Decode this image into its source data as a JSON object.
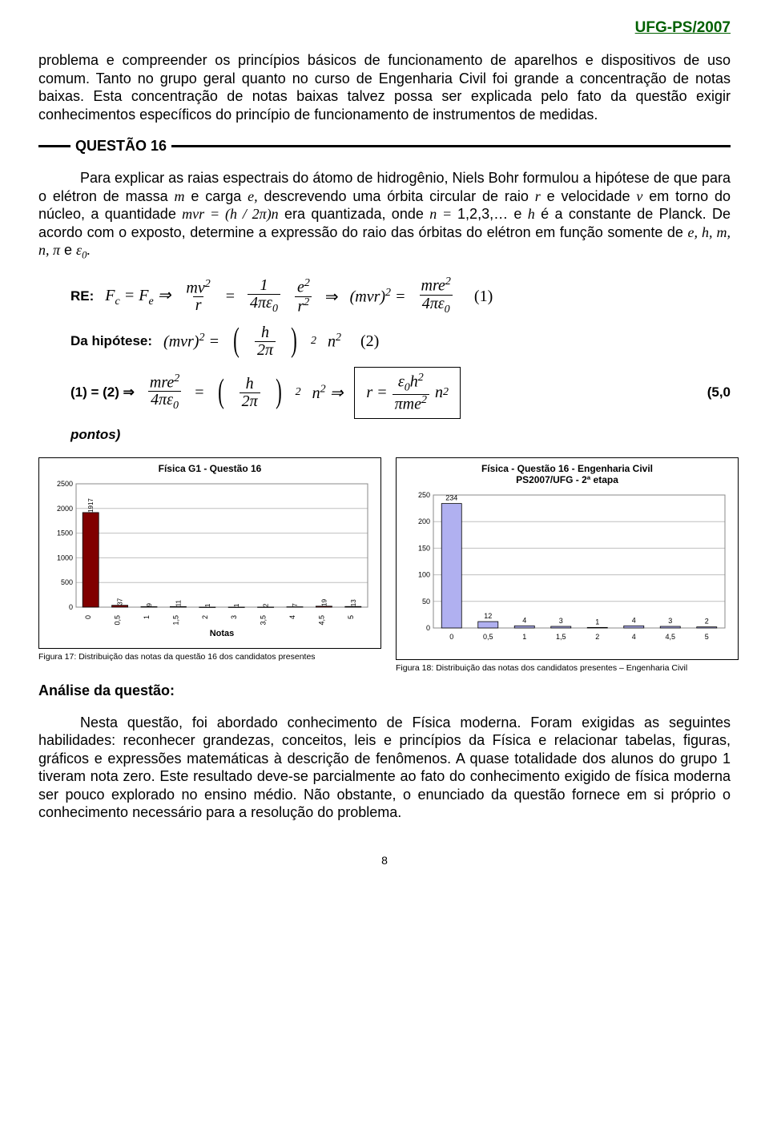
{
  "header": "UFG-PS/2007",
  "intro_para": "problema e compreender os princípios básicos de funcionamento de aparelhos e dispositivos de uso comum. Tanto no grupo geral quanto no curso de Engenharia Civil foi grande a concentração de notas baixas. Esta concentração de notas baixas talvez possa ser explicada pelo fato da questão exigir conhecimentos específicos do princípio de funcionamento de instrumentos de medidas.",
  "question_heading": "QUESTÃO 16",
  "q16_text": "Para explicar as raias espectrais do átomo de hidrogênio, Niels Bohr formulou a hipótese de que para o elétron de massa m e carga e, descrevendo uma órbita circular de raio r e velocidade v em torno do núcleo, a quantidade mvr = (h / 2π)n era quantizada, onde n = 1,2,3,… e h é a constante de Planck. De acordo com o exposto, determine a expressão do raio das órbitas do elétron em função somente de e, h, m, n, π e ε₀.",
  "re_label": "RE:",
  "eq1_tag": "(1)",
  "hip_label": "Da hipótese:",
  "eq2_tag": "(2)",
  "eq12_label": "(1) = (2) ⇒",
  "score_label": "(5,0",
  "pontos_label": "pontos)",
  "chart1": {
    "title": "Física G1 - Questão 16",
    "type": "bar",
    "x_label": "Notas",
    "categories": [
      "0",
      "0,5",
      "1",
      "1,5",
      "2",
      "3",
      "3,5",
      "4",
      "4,5",
      "5"
    ],
    "values": [
      1917,
      37,
      9,
      11,
      1,
      1,
      2,
      7,
      19,
      13
    ],
    "ymax": 2500,
    "ytick_step": 500,
    "bar_fill": "#800000",
    "bar_border": "#000000",
    "bg": "#ffffff",
    "grid_color": "#bfbfbf",
    "label_fontsize": 8
  },
  "chart2": {
    "title": "Física - Questão 16 - Engenharia Civil PS2007/UFG - 2ª etapa",
    "type": "bar",
    "categories": [
      "0",
      "0,5",
      "1",
      "1,5",
      "2",
      "4",
      "4,5",
      "5"
    ],
    "values": [
      234,
      12,
      4,
      3,
      1,
      4,
      3,
      2
    ],
    "ymax": 250,
    "ytick_step": 50,
    "bar_fill": "#b0b0f0",
    "bar_border": "#000000",
    "bg": "#ffffff",
    "grid_color": "#bfbfbf",
    "label_fontsize": 9
  },
  "caption1": "Figura 17: Distribuição das notas da questão 16 dos candidatos presentes",
  "caption2": "Figura 18: Distribuição das notas dos candidatos presentes – Engenharia Civil",
  "analysis_heading": "Análise da questão:",
  "analysis_text": "Nesta questão, foi abordado conhecimento de Física moderna. Foram exigidas as seguintes habilidades: reconhecer grandezas, conceitos, leis e princípios da Física e relacionar tabelas, figuras, gráficos e expressões matemáticas à descrição de fenômenos. A quase totalidade dos alunos do grupo 1 tiveram nota zero. Este resultado deve-se parcialmente ao fato do conhecimento exigido de física moderna ser pouco explorado no ensino médio. Não obstante, o enunciado da questão fornece em si próprio o conhecimento necessário para a resolução do problema.",
  "page_number": "8"
}
